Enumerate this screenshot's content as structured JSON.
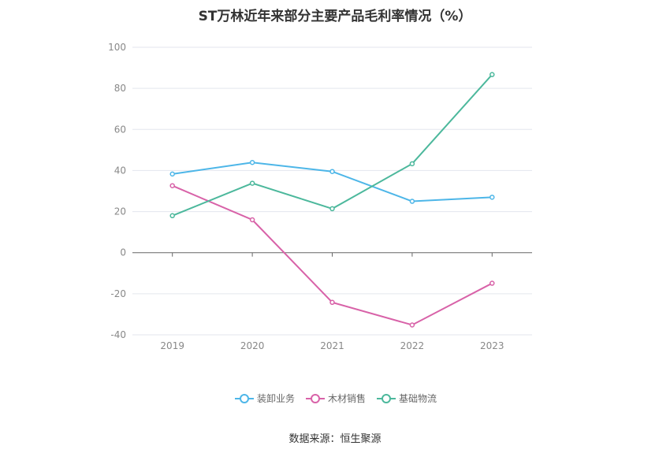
{
  "title": "ST万林近年来部分主要产品毛利率情况（%）",
  "source": "数据来源：恒生聚源",
  "chart_data": {
    "type": "line",
    "title": "ST万林近年来部分主要产品毛利率情况（%）",
    "categories": [
      "2019",
      "2020",
      "2021",
      "2022",
      "2023"
    ],
    "ylim": [
      -40,
      100
    ],
    "yticks": [
      100,
      80,
      60,
      40,
      20,
      0,
      -20,
      -40
    ],
    "grid": true,
    "legend_position": "bottom",
    "series": [
      {
        "name": "装卸业务",
        "color": "#4db6e8",
        "values": [
          38.3,
          43.9,
          39.5,
          25.0,
          27.0
        ]
      },
      {
        "name": "木材销售",
        "color": "#d862a8",
        "values": [
          32.6,
          16.0,
          -24.2,
          -35.2,
          -14.9
        ]
      },
      {
        "name": "基础物流",
        "color": "#4cb89c",
        "values": [
          18.0,
          33.8,
          21.4,
          43.3,
          86.7
        ]
      }
    ]
  }
}
